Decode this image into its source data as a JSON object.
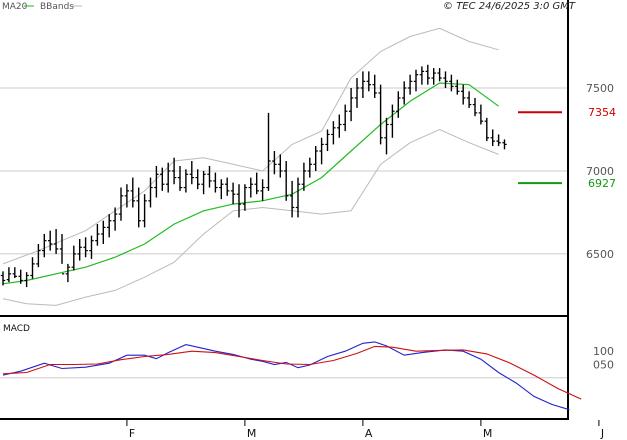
{
  "header": {
    "legend_ma": "MA20",
    "legend_bands": "BBands",
    "copyright": "© TEC 24/6/2025 3:0 GMT"
  },
  "colors": {
    "price": "#000000",
    "ma20": "#22bb22",
    "bands": "#bbbbbb",
    "macd": "#2222cc",
    "signal": "#cc1111",
    "resistance": "#cc0000",
    "support": "#119911",
    "grid": "#cccccc",
    "axis_label": "#555555"
  },
  "chart_data": [
    {
      "type": "ohlc",
      "name": "price",
      "yticks": [
        6500,
        7000,
        7500
      ],
      "ylim": [
        6150,
        7970
      ],
      "x_months": [
        "F",
        "M",
        "A",
        "M",
        "J",
        "J"
      ],
      "month_day_index": [
        21,
        41,
        61,
        81,
        101,
        124
      ],
      "bars": [
        [
          0,
          6370,
          6395,
          6310,
          6340
        ],
        [
          1,
          6345,
          6420,
          6330,
          6380
        ],
        [
          2,
          6380,
          6420,
          6355,
          6365
        ],
        [
          3,
          6365,
          6405,
          6320,
          6340
        ],
        [
          4,
          6340,
          6390,
          6300,
          6370
        ],
        [
          5,
          6370,
          6480,
          6350,
          6440
        ],
        [
          6,
          6440,
          6560,
          6420,
          6520
        ],
        [
          7,
          6520,
          6620,
          6480,
          6580
        ],
        [
          8,
          6580,
          6640,
          6520,
          6560
        ],
        [
          9,
          6560,
          6650,
          6500,
          6530
        ],
        [
          10,
          6530,
          6620,
          6440,
          6380
        ],
        [
          11,
          6380,
          6440,
          6330,
          6420
        ],
        [
          12,
          6420,
          6550,
          6400,
          6500
        ],
        [
          13,
          6500,
          6590,
          6460,
          6540
        ],
        [
          14,
          6540,
          6600,
          6480,
          6520
        ],
        [
          15,
          6520,
          6610,
          6470,
          6580
        ],
        [
          16,
          6580,
          6680,
          6550,
          6620
        ],
        [
          17,
          6620,
          6700,
          6560,
          6660
        ],
        [
          18,
          6660,
          6740,
          6600,
          6700
        ],
        [
          19,
          6700,
          6780,
          6640,
          6740
        ],
        [
          20,
          6740,
          6900,
          6700,
          6850
        ],
        [
          21,
          6850,
          6920,
          6780,
          6880
        ],
        [
          22,
          6880,
          6960,
          6780,
          6820
        ],
        [
          23,
          6820,
          6900,
          6660,
          6700
        ],
        [
          24,
          6700,
          6860,
          6660,
          6820
        ],
        [
          25,
          6820,
          6960,
          6780,
          6900
        ],
        [
          26,
          6900,
          7030,
          6840,
          6980
        ],
        [
          27,
          6980,
          7020,
          6880,
          6920
        ],
        [
          28,
          6920,
          7050,
          6870,
          7000
        ],
        [
          29,
          7000,
          7080,
          6920,
          6960
        ],
        [
          30,
          6960,
          7030,
          6880,
          6900
        ],
        [
          31,
          6900,
          7010,
          6870,
          6980
        ],
        [
          32,
          6980,
          7060,
          6920,
          6960
        ],
        [
          33,
          6960,
          7010,
          6890,
          6920
        ],
        [
          34,
          6920,
          7000,
          6860,
          6980
        ],
        [
          35,
          6980,
          7030,
          6900,
          6940
        ],
        [
          36,
          6940,
          6990,
          6870,
          6900
        ],
        [
          37,
          6900,
          6950,
          6830,
          6920
        ],
        [
          38,
          6920,
          6960,
          6850,
          6880
        ],
        [
          39,
          6880,
          6930,
          6800,
          6860
        ],
        [
          40,
          6860,
          6920,
          6720,
          6800
        ],
        [
          41,
          6800,
          6920,
          6760,
          6900
        ],
        [
          42,
          6900,
          6960,
          6840,
          6920
        ],
        [
          43,
          6920,
          6990,
          6860,
          6880
        ],
        [
          44,
          6880,
          6950,
          6820,
          6900
        ],
        [
          45,
          6900,
          7350,
          6880,
          7060
        ],
        [
          46,
          7060,
          7120,
          6980,
          7040
        ],
        [
          47,
          7040,
          7100,
          6960,
          7000
        ],
        [
          48,
          7000,
          7060,
          6820,
          6850
        ],
        [
          49,
          6850,
          6940,
          6720,
          6780
        ],
        [
          50,
          6780,
          6960,
          6720,
          6920
        ],
        [
          51,
          6920,
          7050,
          6880,
          7000
        ],
        [
          52,
          7000,
          7080,
          6960,
          7040
        ],
        [
          53,
          7040,
          7150,
          7000,
          7120
        ],
        [
          54,
          7120,
          7200,
          7040,
          7160
        ],
        [
          55,
          7160,
          7250,
          7120,
          7220
        ],
        [
          56,
          7220,
          7300,
          7160,
          7260
        ],
        [
          57,
          7260,
          7340,
          7200,
          7280
        ],
        [
          58,
          7280,
          7400,
          7240,
          7360
        ],
        [
          59,
          7360,
          7500,
          7300,
          7440
        ],
        [
          60,
          7440,
          7560,
          7380,
          7500
        ],
        [
          61,
          7500,
          7600,
          7440,
          7540
        ],
        [
          62,
          7540,
          7600,
          7480,
          7520
        ],
        [
          63,
          7520,
          7580,
          7440,
          7470
        ],
        [
          64,
          7470,
          7520,
          7160,
          7200
        ],
        [
          65,
          7200,
          7320,
          7100,
          7280
        ],
        [
          66,
          7280,
          7400,
          7200,
          7360
        ],
        [
          67,
          7360,
          7480,
          7320,
          7440
        ],
        [
          68,
          7440,
          7540,
          7400,
          7500
        ],
        [
          69,
          7500,
          7580,
          7460,
          7540
        ],
        [
          70,
          7540,
          7610,
          7480,
          7580
        ],
        [
          71,
          7580,
          7630,
          7520,
          7600
        ],
        [
          72,
          7600,
          7640,
          7520,
          7560
        ],
        [
          73,
          7560,
          7620,
          7520,
          7590
        ],
        [
          74,
          7590,
          7620,
          7540,
          7560
        ],
        [
          75,
          7560,
          7600,
          7500,
          7540
        ],
        [
          76,
          7540,
          7580,
          7480,
          7510
        ],
        [
          77,
          7510,
          7550,
          7460,
          7480
        ],
        [
          78,
          7480,
          7520,
          7400,
          7440
        ],
        [
          79,
          7440,
          7480,
          7380,
          7400
        ],
        [
          80,
          7400,
          7440,
          7330,
          7350
        ],
        [
          81,
          7350,
          7400,
          7280,
          7300
        ],
        [
          82,
          7300,
          7320,
          7180,
          7200
        ],
        [
          83,
          7200,
          7250,
          7150,
          7180
        ],
        [
          84,
          7180,
          7220,
          7150,
          7170
        ],
        [
          85,
          7170,
          7190,
          7130,
          7160
        ]
      ],
      "ma20": [
        [
          0,
          6320
        ],
        [
          4,
          6340
        ],
        [
          9,
          6380
        ],
        [
          14,
          6420
        ],
        [
          19,
          6480
        ],
        [
          24,
          6560
        ],
        [
          29,
          6680
        ],
        [
          34,
          6760
        ],
        [
          39,
          6800
        ],
        [
          44,
          6820
        ],
        [
          49,
          6860
        ],
        [
          54,
          6960
        ],
        [
          59,
          7120
        ],
        [
          64,
          7280
        ],
        [
          69,
          7420
        ],
        [
          74,
          7530
        ],
        [
          79,
          7520
        ],
        [
          84,
          7390
        ]
      ],
      "upper_band": [
        [
          0,
          6440
        ],
        [
          6,
          6520
        ],
        [
          10,
          6580
        ],
        [
          14,
          6640
        ],
        [
          19,
          6760
        ],
        [
          24,
          6880
        ],
        [
          29,
          7060
        ],
        [
          34,
          7080
        ],
        [
          39,
          7040
        ],
        [
          44,
          7000
        ],
        [
          49,
          7160
        ],
        [
          54,
          7240
        ],
        [
          59,
          7560
        ],
        [
          64,
          7720
        ],
        [
          69,
          7810
        ],
        [
          74,
          7860
        ],
        [
          79,
          7780
        ],
        [
          84,
          7730
        ]
      ],
      "lower_band": [
        [
          0,
          6230
        ],
        [
          4,
          6200
        ],
        [
          9,
          6190
        ],
        [
          14,
          6240
        ],
        [
          19,
          6280
        ],
        [
          24,
          6360
        ],
        [
          29,
          6450
        ],
        [
          34,
          6620
        ],
        [
          39,
          6760
        ],
        [
          44,
          6780
        ],
        [
          49,
          6760
        ],
        [
          54,
          6740
        ],
        [
          59,
          6760
        ],
        [
          64,
          7040
        ],
        [
          69,
          7170
        ],
        [
          74,
          7250
        ],
        [
          79,
          7170
        ],
        [
          84,
          7100
        ]
      ],
      "levels": [
        {
          "label": "7354",
          "value": 7354,
          "color": "#cc0000"
        },
        {
          "label": "6927",
          "value": 6927,
          "color": "#119911"
        }
      ]
    },
    {
      "type": "line",
      "name": "MACD",
      "title": "MACD",
      "yticks": [
        {
          "label": "100",
          "value": 100
        },
        {
          "label": "050",
          "value": 50
        }
      ],
      "ylim": [
        -140,
        210
      ],
      "series": [
        {
          "points": [
            [
              0,
              10
            ],
            [
              3,
              25
            ],
            [
              7,
              55
            ],
            [
              10,
              35
            ],
            [
              14,
              40
            ],
            [
              18,
              55
            ],
            [
              21,
              85
            ],
            [
              24,
              85
            ],
            [
              26,
              72
            ],
            [
              28,
              95
            ],
            [
              31,
              125
            ],
            [
              33,
              115
            ],
            [
              36,
              100
            ],
            [
              39,
              88
            ],
            [
              42,
              70
            ],
            [
              44,
              62
            ],
            [
              46,
              50
            ],
            [
              48,
              58
            ],
            [
              50,
              38
            ],
            [
              52,
              48
            ],
            [
              55,
              80
            ],
            [
              58,
              100
            ],
            [
              61,
              130
            ],
            [
              63,
              135
            ],
            [
              65,
              120
            ],
            [
              68,
              85
            ],
            [
              71,
              95
            ],
            [
              75,
              105
            ],
            [
              78,
              100
            ],
            [
              81,
              70
            ],
            [
              84,
              20
            ],
            [
              87,
              -20
            ],
            [
              90,
              -70
            ],
            [
              93,
              -100
            ],
            [
              96,
              -120
            ]
          ]
        },
        {
          "points": [
            [
              0,
              15
            ],
            [
              4,
              20
            ],
            [
              8,
              50
            ],
            [
              12,
              50
            ],
            [
              16,
              52
            ],
            [
              20,
              68
            ],
            [
              24,
              80
            ],
            [
              28,
              88
            ],
            [
              32,
              100
            ],
            [
              36,
              95
            ],
            [
              40,
              80
            ],
            [
              44,
              65
            ],
            [
              48,
              52
            ],
            [
              52,
              50
            ],
            [
              56,
              65
            ],
            [
              60,
              92
            ],
            [
              63,
              118
            ],
            [
              66,
              115
            ],
            [
              70,
              100
            ],
            [
              74,
              103
            ],
            [
              78,
              105
            ],
            [
              82,
              90
            ],
            [
              86,
              55
            ],
            [
              90,
              10
            ],
            [
              94,
              -40
            ],
            [
              98,
              -80
            ]
          ]
        }
      ]
    }
  ]
}
